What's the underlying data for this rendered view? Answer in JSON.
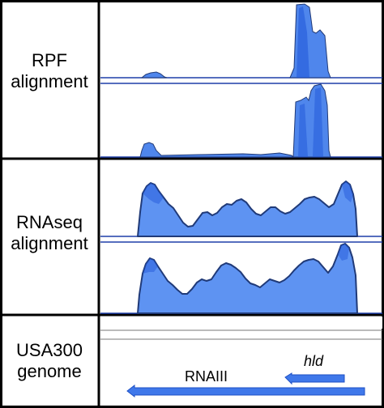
{
  "panels": {
    "rpf": {
      "label_line1": "RPF",
      "label_line2": "alignment"
    },
    "rnaseq": {
      "label_line1": "RNAseq",
      "label_line2": "alignment"
    },
    "genome": {
      "label_line1": "USA300",
      "label_line2": "genome"
    }
  },
  "genes": {
    "rnaiii": {
      "name": "RNAIII",
      "strand": "reverse"
    },
    "hld": {
      "name": "hld",
      "strand": "reverse",
      "italic": true
    }
  },
  "colors": {
    "track_fill": "#4f86ec",
    "track_fill_dark": "#1f55d8",
    "track_outline": "#203a78",
    "gene_fill": "#3f78ea",
    "panel_border": "#000000"
  }
}
